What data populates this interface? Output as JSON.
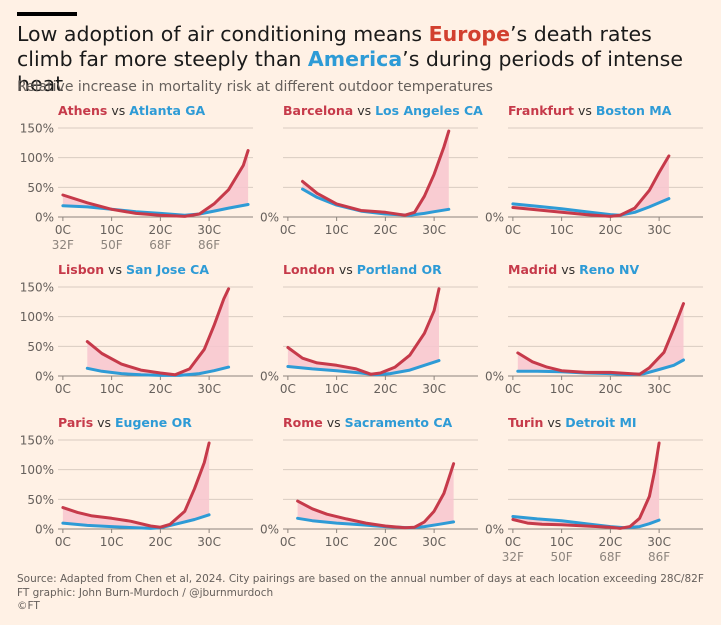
{
  "title": {
    "part1": "Low adoption of air conditioning means ",
    "europe": "Europe",
    "part2": "’s death rates climb far more steeply than ",
    "america": "America",
    "part3": "’s during periods of intense heat"
  },
  "subtitle": "Relative increase in mortality risk at different outdoor temperatures",
  "footer": {
    "source": "Source: Adapted from Chen et al, 2024. City pairings are based on the annual number of days at each location exceeding 28C/82F",
    "credit": "FT graphic: John Burn-Murdoch / @jburnmurdoch",
    "copyright": "©FT"
  },
  "colors": {
    "europe": "#C63A4A",
    "america": "#2E9BD6",
    "fill": "#F8C6CF",
    "axis": "#66605C",
    "grid": "#D9CCC1",
    "background": "#FFF1E5"
  },
  "chart_data": {
    "type": "line",
    "layout": "small multiples 3x3",
    "y_tick_labels": [
      "0%",
      "50%",
      "100%",
      "150%"
    ],
    "y_ticks": [
      0,
      50,
      100,
      150
    ],
    "ylim": [
      0,
      150
    ],
    "xlim": [
      -1,
      39
    ],
    "x_ticks": [
      0,
      10,
      20,
      30
    ],
    "x_tick_labels_c": [
      "0C",
      "10C",
      "20C",
      "30C"
    ],
    "x_tick_labels_f": [
      "32F",
      "50F",
      "68F",
      "86F"
    ],
    "panels": [
      {
        "europe": "Athens",
        "vs": "vs",
        "america": "Atlanta GA",
        "show_f": true,
        "europe_points": [
          [
            0,
            37
          ],
          [
            5,
            24
          ],
          [
            10,
            13
          ],
          [
            15,
            6
          ],
          [
            20,
            3
          ],
          [
            25,
            1
          ],
          [
            28,
            5
          ],
          [
            31,
            22
          ],
          [
            34,
            46
          ],
          [
            37,
            87
          ],
          [
            38,
            112
          ]
        ],
        "america_points": [
          [
            0,
            19
          ],
          [
            5,
            17
          ],
          [
            10,
            13
          ],
          [
            15,
            9
          ],
          [
            20,
            6
          ],
          [
            25,
            3
          ],
          [
            28,
            5
          ],
          [
            31,
            10
          ],
          [
            34,
            15
          ],
          [
            38,
            21
          ]
        ]
      },
      {
        "europe": "Barcelona",
        "vs": "vs",
        "america": "Los Angeles CA",
        "show_f": false,
        "europe_points": [
          [
            3,
            60
          ],
          [
            6,
            40
          ],
          [
            10,
            22
          ],
          [
            15,
            11
          ],
          [
            20,
            8
          ],
          [
            24,
            3
          ],
          [
            26,
            8
          ],
          [
            28,
            35
          ],
          [
            30,
            72
          ],
          [
            32,
            118
          ],
          [
            33,
            145
          ]
        ],
        "america_points": [
          [
            3,
            47
          ],
          [
            6,
            33
          ],
          [
            10,
            20
          ],
          [
            15,
            10
          ],
          [
            20,
            5
          ],
          [
            25,
            3
          ],
          [
            28,
            6
          ],
          [
            30,
            9
          ],
          [
            33,
            13
          ]
        ]
      },
      {
        "europe": "Frankfurt",
        "vs": "vs",
        "america": "Boston MA",
        "show_f": false,
        "europe_points": [
          [
            0,
            16
          ],
          [
            5,
            12
          ],
          [
            10,
            8
          ],
          [
            15,
            4
          ],
          [
            20,
            1
          ],
          [
            22,
            3
          ],
          [
            25,
            15
          ],
          [
            28,
            45
          ],
          [
            30,
            75
          ],
          [
            32,
            103
          ]
        ],
        "america_points": [
          [
            0,
            22
          ],
          [
            5,
            18
          ],
          [
            10,
            14
          ],
          [
            15,
            9
          ],
          [
            20,
            4
          ],
          [
            22,
            3
          ],
          [
            25,
            8
          ],
          [
            28,
            17
          ],
          [
            30,
            24
          ],
          [
            32,
            31
          ]
        ]
      },
      {
        "europe": "Lisbon",
        "vs": "vs",
        "america": "San Jose CA",
        "show_f": false,
        "europe_points": [
          [
            5,
            58
          ],
          [
            8,
            38
          ],
          [
            12,
            20
          ],
          [
            16,
            10
          ],
          [
            20,
            5
          ],
          [
            23,
            2
          ],
          [
            26,
            12
          ],
          [
            29,
            45
          ],
          [
            31,
            85
          ],
          [
            33,
            130
          ],
          [
            34,
            147
          ]
        ],
        "america_points": [
          [
            5,
            13
          ],
          [
            8,
            8
          ],
          [
            12,
            4
          ],
          [
            16,
            2
          ],
          [
            20,
            1
          ],
          [
            24,
            1
          ],
          [
            28,
            4
          ],
          [
            31,
            9
          ],
          [
            34,
            15
          ]
        ]
      },
      {
        "europe": "London",
        "vs": "vs",
        "america": "Portland OR",
        "show_f": false,
        "europe_points": [
          [
            0,
            48
          ],
          [
            3,
            30
          ],
          [
            6,
            22
          ],
          [
            10,
            18
          ],
          [
            14,
            12
          ],
          [
            17,
            3
          ],
          [
            19,
            5
          ],
          [
            22,
            15
          ],
          [
            25,
            35
          ],
          [
            28,
            72
          ],
          [
            30,
            110
          ],
          [
            31,
            147
          ]
        ],
        "america_points": [
          [
            0,
            16
          ],
          [
            5,
            12
          ],
          [
            10,
            9
          ],
          [
            15,
            5
          ],
          [
            18,
            2
          ],
          [
            21,
            4
          ],
          [
            25,
            10
          ],
          [
            28,
            18
          ],
          [
            31,
            26
          ]
        ]
      },
      {
        "europe": "Madrid",
        "vs": "vs",
        "america": "Reno NV",
        "show_f": false,
        "europe_points": [
          [
            1,
            39
          ],
          [
            4,
            24
          ],
          [
            7,
            15
          ],
          [
            10,
            9
          ],
          [
            15,
            6
          ],
          [
            20,
            6
          ],
          [
            24,
            4
          ],
          [
            26,
            3
          ],
          [
            28,
            14
          ],
          [
            31,
            40
          ],
          [
            33,
            80
          ],
          [
            35,
            122
          ]
        ],
        "america_points": [
          [
            1,
            8
          ],
          [
            5,
            8
          ],
          [
            10,
            7
          ],
          [
            15,
            5
          ],
          [
            20,
            4
          ],
          [
            24,
            2
          ],
          [
            27,
            4
          ],
          [
            30,
            11
          ],
          [
            33,
            18
          ],
          [
            35,
            27
          ]
        ]
      },
      {
        "europe": "Paris",
        "vs": "vs",
        "america": "Eugene OR",
        "show_f": false,
        "europe_points": [
          [
            0,
            36
          ],
          [
            3,
            28
          ],
          [
            6,
            22
          ],
          [
            10,
            18
          ],
          [
            14,
            13
          ],
          [
            18,
            5
          ],
          [
            20,
            3
          ],
          [
            22,
            8
          ],
          [
            25,
            30
          ],
          [
            27,
            68
          ],
          [
            29,
            112
          ],
          [
            30,
            145
          ]
        ],
        "america_points": [
          [
            0,
            10
          ],
          [
            5,
            6
          ],
          [
            10,
            4
          ],
          [
            15,
            2
          ],
          [
            18,
            1
          ],
          [
            20,
            2
          ],
          [
            23,
            8
          ],
          [
            27,
            16
          ],
          [
            30,
            24
          ]
        ]
      },
      {
        "europe": "Rome",
        "vs": "vs",
        "america": "Sacramento CA",
        "show_f": false,
        "europe_points": [
          [
            2,
            47
          ],
          [
            5,
            34
          ],
          [
            8,
            25
          ],
          [
            12,
            17
          ],
          [
            16,
            10
          ],
          [
            20,
            5
          ],
          [
            24,
            2
          ],
          [
            26,
            3
          ],
          [
            28,
            12
          ],
          [
            30,
            30
          ],
          [
            32,
            60
          ],
          [
            34,
            110
          ]
        ],
        "america_points": [
          [
            2,
            18
          ],
          [
            5,
            14
          ],
          [
            10,
            10
          ],
          [
            15,
            7
          ],
          [
            20,
            4
          ],
          [
            25,
            2
          ],
          [
            28,
            4
          ],
          [
            31,
            8
          ],
          [
            34,
            12
          ]
        ]
      },
      {
        "europe": "Turin",
        "vs": "vs",
        "america": "Detroit MI",
        "show_f": true,
        "europe_points": [
          [
            0,
            16
          ],
          [
            3,
            10
          ],
          [
            6,
            8
          ],
          [
            10,
            7
          ],
          [
            15,
            5
          ],
          [
            20,
            3
          ],
          [
            22,
            1
          ],
          [
            24,
            4
          ],
          [
            26,
            18
          ],
          [
            28,
            55
          ],
          [
            29,
            95
          ],
          [
            30,
            145
          ]
        ],
        "america_points": [
          [
            0,
            21
          ],
          [
            5,
            17
          ],
          [
            10,
            14
          ],
          [
            15,
            9
          ],
          [
            20,
            4
          ],
          [
            23,
            2
          ],
          [
            26,
            4
          ],
          [
            28,
            9
          ],
          [
            30,
            15
          ]
        ]
      }
    ]
  }
}
